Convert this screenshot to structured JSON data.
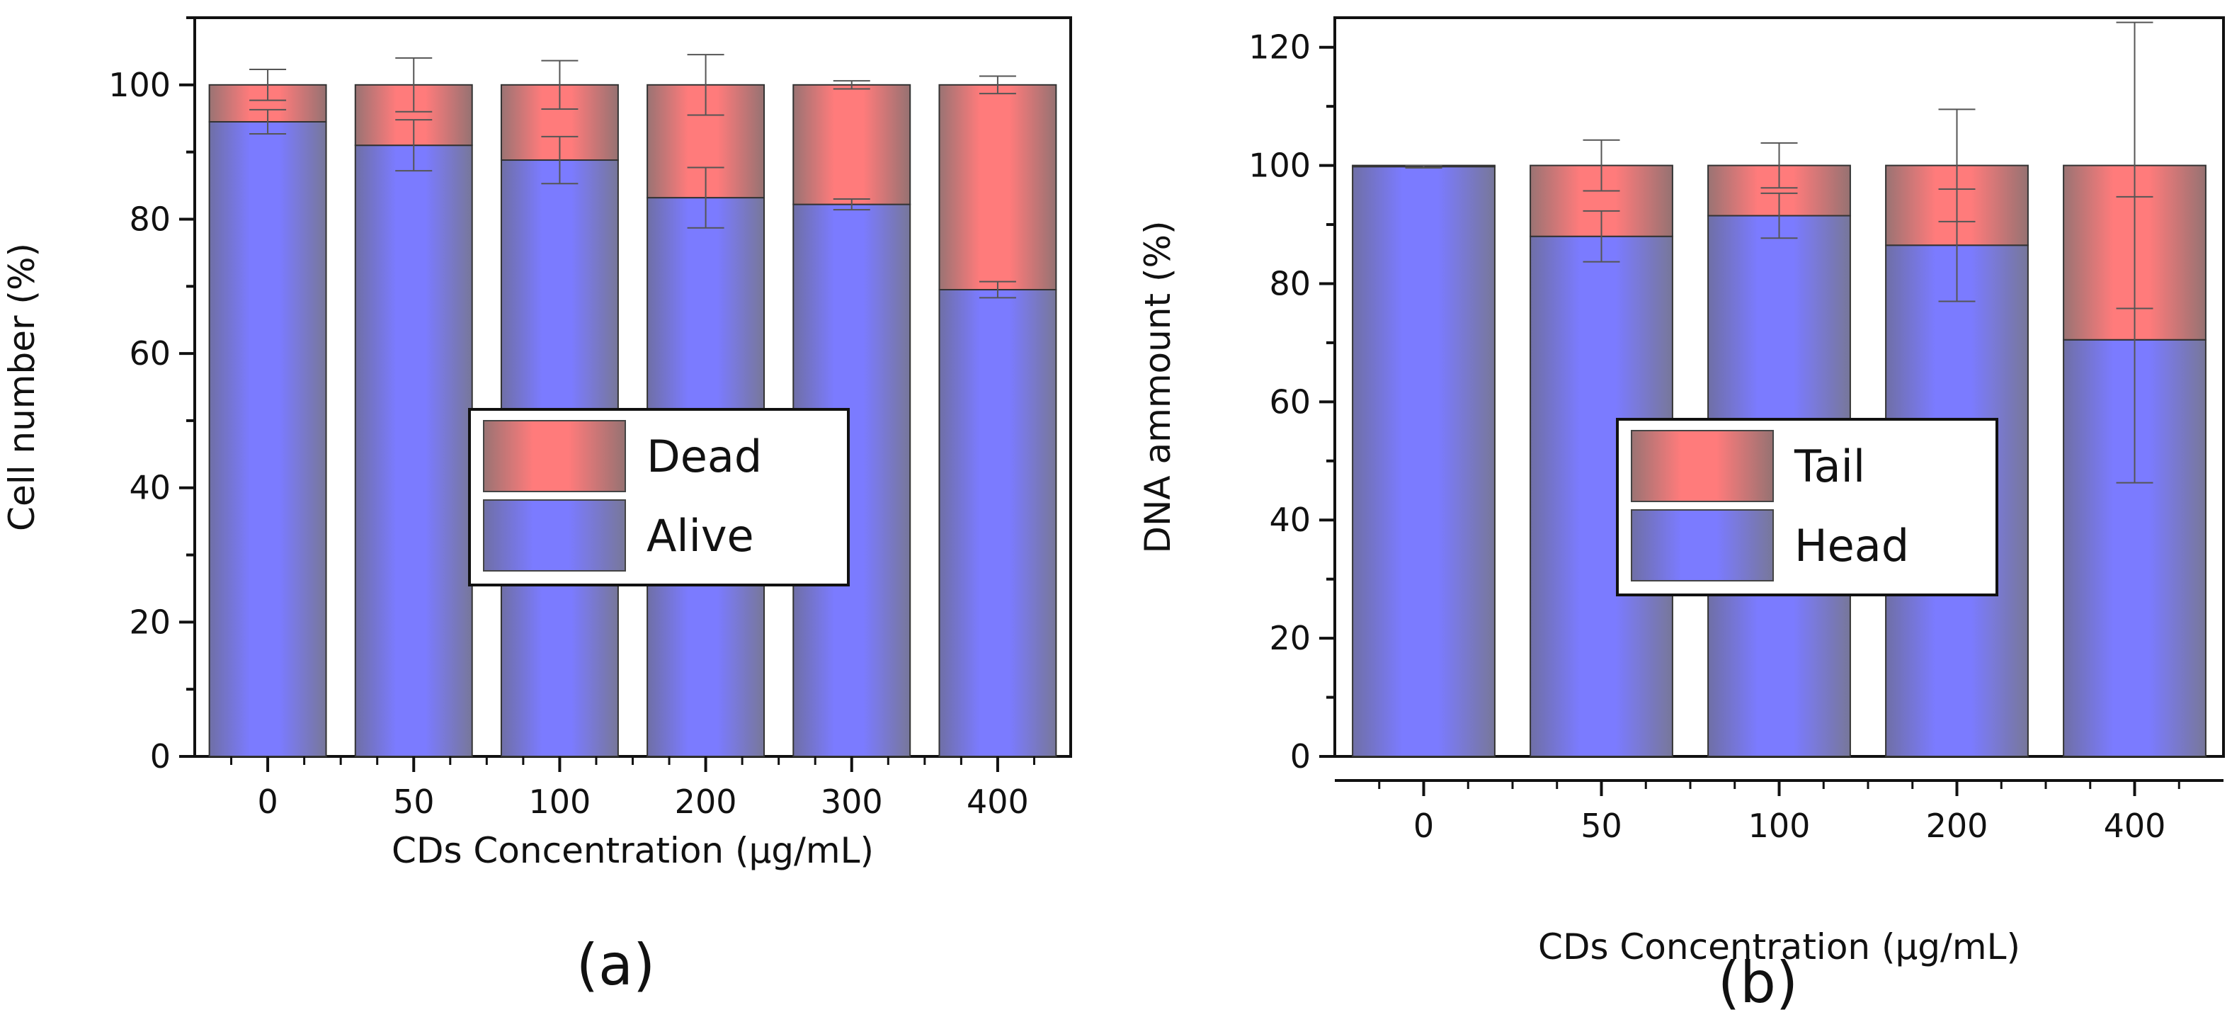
{
  "chart_data": [
    {
      "type": "bar",
      "stacked": true,
      "panel_label": "(a)",
      "xlabel": "CDs Concentration (µg/mL)",
      "ylabel": "Cell number (%)",
      "categories": [
        "0",
        "50",
        "100",
        "200",
        "300",
        "400"
      ],
      "ylim": [
        0,
        110
      ],
      "yticks": [
        0,
        20,
        40,
        60,
        80,
        100
      ],
      "series": [
        {
          "name": "Alive",
          "color": "#7b7bff",
          "values": [
            94.5,
            91,
            88.8,
            83.2,
            82.2,
            69.5
          ],
          "errors": [
            1.8,
            3.8,
            3.5,
            4.5,
            0.8,
            1.2
          ]
        },
        {
          "name": "Dead",
          "color": "#ff7b7b",
          "values": [
            5.5,
            9,
            11.2,
            16.8,
            17.8,
            30.5
          ],
          "errors": [
            2.3,
            4.0,
            3.6,
            4.5,
            0.6,
            1.3
          ]
        }
      ],
      "legend": {
        "position": "center-right",
        "entries": [
          "Dead",
          "Alive"
        ]
      }
    },
    {
      "type": "bar",
      "stacked": true,
      "panel_label": "(b)",
      "xlabel": "CDs Concentration (µg/mL)",
      "ylabel": "DNA ammount (%)",
      "categories": [
        "0",
        "50",
        "100",
        "200",
        "400"
      ],
      "ylim": [
        0,
        125
      ],
      "yticks": [
        0,
        20,
        40,
        60,
        80,
        100,
        120
      ],
      "series": [
        {
          "name": "Head",
          "color": "#7b7bff",
          "values": [
            99.8,
            88,
            91.5,
            86.5,
            70.5
          ],
          "errors": [
            0.2,
            4.3,
            3.8,
            9.5,
            24.2
          ]
        },
        {
          "name": "Tail",
          "color": "#ff7b7b",
          "values": [
            0.2,
            12,
            8.5,
            13.5,
            29.5
          ],
          "errors": [
            0.0,
            4.3,
            3.8,
            9.5,
            24.2
          ]
        }
      ],
      "legend": {
        "position": "center-right",
        "entries": [
          "Tail",
          "Head"
        ]
      }
    }
  ]
}
